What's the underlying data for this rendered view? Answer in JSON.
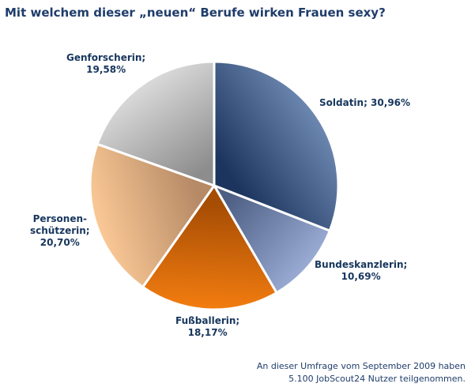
{
  "chart_data": {
    "type": "pie",
    "title": "Mit welchem dieser „neuen“ Berufe wirken Frauen sexy?",
    "slices": [
      {
        "label_lines": [
          "Soldatin; 30,96%"
        ],
        "value": 30.96,
        "color_light": "#6d88b0",
        "color_dark": "#1c355f"
      },
      {
        "label_lines": [
          "Bundeskanzlerin;",
          "10,69%"
        ],
        "value": 10.69,
        "color_light": "#9aabd4",
        "color_dark": "#4d5f84"
      },
      {
        "label_lines": [
          "Fußballerin;",
          "18,17%"
        ],
        "value": 18.17,
        "color_light": "#f37d10",
        "color_dark": "#a64d04"
      },
      {
        "label_lines": [
          "Personen-",
          "schützerin;",
          "20,70%"
        ],
        "value": 20.7,
        "color_light": "#fbc996",
        "color_dark": "#b68a66"
      },
      {
        "label_lines": [
          "Genforscherin;",
          "19,58%"
        ],
        "value": 19.58,
        "color_light": "#dadada",
        "color_dark": "#8d8d8d"
      }
    ]
  },
  "footnote": {
    "line1": "An dieser Umfrage vom September 2009 haben",
    "line2": "5.100 JobScout24 Nutzer teilgenommen."
  }
}
